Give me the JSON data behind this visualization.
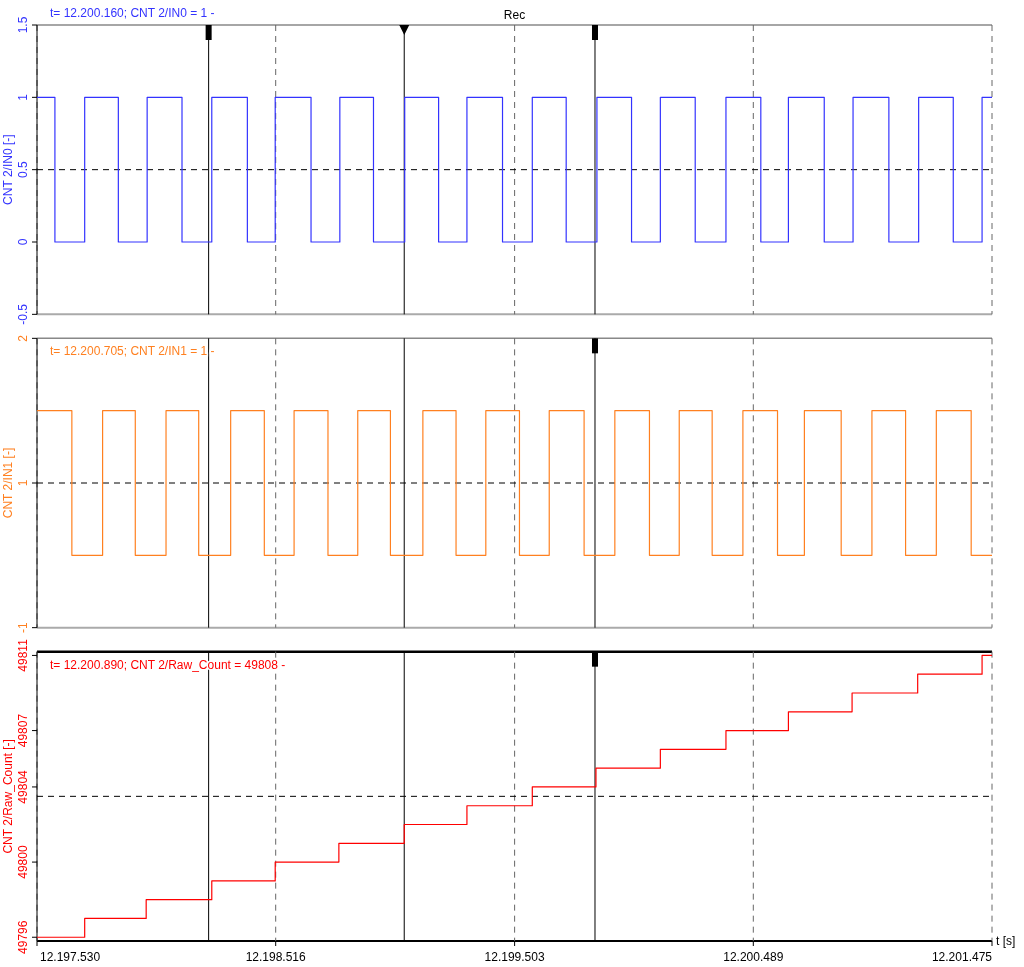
{
  "chart_data": [
    {
      "type": "step",
      "title": "Rec",
      "ylabel": "CNT 2/IN0 [-]",
      "xlim": [
        12197530,
        12201475
      ],
      "xticks": [
        {
          "value": 12197530,
          "label": null
        },
        {
          "value": 12198516,
          "label": null
        },
        {
          "value": 12199503,
          "label": null
        },
        {
          "value": 12200489,
          "label": null
        },
        {
          "value": 12201475,
          "label": null
        }
      ],
      "ylim": [
        -0.5,
        1.5
      ],
      "yticks": [
        1.5,
        1,
        0.5,
        0,
        -0.5
      ],
      "tick_labels": "y",
      "grid": "x",
      "series": [
        {
          "color": "#3333ff",
          "x": [
            12197530,
            12197604,
            12197727,
            12197866,
            12197985,
            12198129,
            12198252,
            12198399,
            12198514,
            12198662,
            12198781,
            12198920,
            12199049,
            12199189,
            12199306,
            12199453,
            12199576,
            12199716,
            12199843,
            12199986,
            12200105,
            12200249,
            12200376,
            12200520,
            12200634,
            12200782,
            12200901,
            12201049,
            12201172,
            12201315,
            12201434,
            12201475
          ],
          "values": [
            1,
            0,
            1,
            0,
            1,
            0,
            1,
            0,
            1,
            0,
            1,
            0,
            1,
            0,
            1,
            0,
            1,
            0,
            1,
            0,
            1,
            0,
            1,
            0,
            1,
            0,
            1,
            0,
            1,
            0,
            1,
            1
          ]
        }
      ],
      "ref_lines": [
        {
          "axis": "y",
          "value": 0.5,
          "line_style": "dashed"
        },
        {
          "axis": "x",
          "value": 12198239
        },
        {
          "axis": "x",
          "value": 12199047
        },
        {
          "axis": "x",
          "value": 12199835
        }
      ],
      "annotations": [
        "t= 12.200.160; CNT 2/IN0 = 1 -"
      ]
    },
    {
      "type": "step",
      "ylabel": "CNT 2/IN1 [-]",
      "xlim": [
        12197530,
        12201475
      ],
      "xticks": [
        {
          "value": 12197530,
          "label": null
        },
        {
          "value": 12198516,
          "label": null
        },
        {
          "value": 12199503,
          "label": null
        },
        {
          "value": 12200489,
          "label": null
        },
        {
          "value": 12201475,
          "label": null
        }
      ],
      "ylim": [
        -0.5,
        1.5
      ],
      "yticks": [
        {
          "value": 1.5,
          "label": "2"
        },
        {
          "value": 0.5,
          "label": "1"
        },
        {
          "value": -0.5,
          "label": "-1"
        }
      ],
      "tick_labels": "y",
      "grid": "x",
      "series": [
        {
          "color": "#ff8020",
          "x": [
            12197530,
            12197674,
            12197801,
            12197936,
            12198063,
            12198198,
            12198330,
            12198469,
            12198592,
            12198732,
            12198855,
            12198990,
            12199124,
            12199261,
            12199384,
            12199523,
            12199646,
            12199790,
            12199917,
            12200060,
            12200183,
            12200319,
            12200446,
            12200589,
            12200700,
            12200852,
            12200979,
            12201118,
            12201245,
            12201389,
            12201475
          ],
          "values": [
            1,
            0,
            1,
            0,
            1,
            0,
            1,
            0,
            1,
            0,
            1,
            0,
            1,
            0,
            1,
            0,
            1,
            0,
            1,
            0,
            1,
            0,
            1,
            0,
            1,
            0,
            1,
            0,
            1,
            0,
            0
          ]
        }
      ],
      "ref_lines": [
        {
          "axis": "y",
          "value": 0.5,
          "line_style": "dashed"
        },
        {
          "axis": "x",
          "value": 12198239
        },
        {
          "axis": "x",
          "value": 12199047
        },
        {
          "axis": "x",
          "value": 12199835
        }
      ],
      "annotations": [
        "t= 12.200.705; CNT 2/IN1 = 1 -"
      ]
    },
    {
      "type": "step",
      "ylabel": "CNT 2/Raw_Count [-]",
      "xlabel": "t [s]",
      "xlim": [
        12197530,
        12201475
      ],
      "xticks": [
        {
          "value": 12197530,
          "label": "12.197.530"
        },
        {
          "value": 12198516,
          "label": "12.198.516"
        },
        {
          "value": 12199503,
          "label": "12.199.503"
        },
        {
          "value": 12200489,
          "label": "12.200.489"
        },
        {
          "value": 12201475,
          "label": "12.201.475"
        }
      ],
      "ylim": [
        49795.8,
        49811.2
      ],
      "yticks": [
        49811,
        49807,
        49804,
        49800,
        49796
      ],
      "grid": "x",
      "series": [
        {
          "color": "#ff0000",
          "x": [
            12197530,
            12197727,
            12197981,
            12198252,
            12198514,
            12198777,
            12199047,
            12199306,
            12199576,
            12199839,
            12200105,
            12200376,
            12200634,
            12200897,
            12201168,
            12201434,
            12201475
          ],
          "values": [
            49796,
            49797,
            49798,
            49799,
            49800,
            49801,
            49802,
            49803,
            49804,
            49805,
            49806,
            49807,
            49808,
            49809,
            49810,
            49811,
            49811
          ]
        }
      ],
      "ref_lines": [
        {
          "axis": "y",
          "value": 49803.5,
          "line_style": "dashed"
        },
        {
          "axis": "x",
          "value": 12198239
        },
        {
          "axis": "x",
          "value": 12199047
        },
        {
          "axis": "x",
          "value": 12199835
        }
      ],
      "annotations": [
        "t= 12.200.890; CNT 2/Raw_Count = 49808 -"
      ]
    }
  ]
}
